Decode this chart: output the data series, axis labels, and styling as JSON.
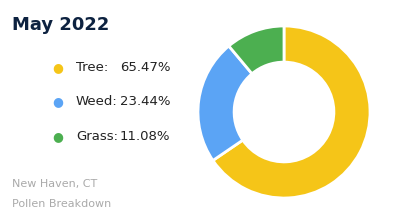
{
  "title": "May 2022",
  "subtitle_line1": "New Haven, CT",
  "subtitle_line2": "Pollen Breakdown",
  "categories": [
    "Tree",
    "Weed",
    "Grass"
  ],
  "values": [
    65.47,
    23.44,
    11.08
  ],
  "labels": [
    "65.47%",
    "23.44%",
    "11.08%"
  ],
  "colors": [
    "#F5C518",
    "#5BA4F5",
    "#4CAF50"
  ],
  "background_color": "#ffffff",
  "title_color": "#0d2240",
  "legend_text_color": "#222222",
  "subtitle_color": "#aaaaaa",
  "title_fontsize": 13,
  "legend_fontsize": 9.5,
  "subtitle_fontsize": 8,
  "donut_width": 0.42,
  "startangle": 90
}
